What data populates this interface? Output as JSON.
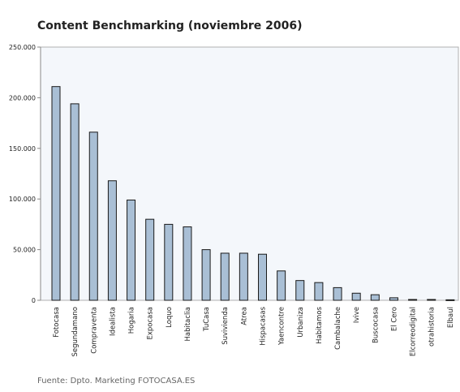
{
  "chart_data": {
    "type": "bar",
    "title": "Content Benchmarking (noviembre 2006)",
    "source": "Fuente: Dpto. Marketing FOTOCASA.ES",
    "xlabel": "",
    "ylabel": "",
    "ylim": [
      0,
      250000
    ],
    "yticks": [
      0,
      50000,
      100000,
      150000,
      200000,
      250000
    ],
    "ytick_labels": [
      "0",
      "50.000",
      "100.000",
      "150.000",
      "200.000",
      "250.000"
    ],
    "grid": false,
    "categories": [
      "Fotocasa",
      "Segundamano",
      "Compraventa",
      "Idealista",
      "Hogaria",
      "Expocasa",
      "Loquo",
      "Habitaclia",
      "TuCasa",
      "Suvivienda",
      "Atrea",
      "Hispacasas",
      "Yaencontre",
      "Urbaniza",
      "Habitamos",
      "Cambalache",
      "Ivive",
      "Buscocasa",
      "El Cero",
      "Elcorreodigital",
      "otrahistoria",
      "Elbaul"
    ],
    "values": [
      211000,
      194000,
      166000,
      118000,
      99000,
      80000,
      75000,
      72500,
      50000,
      46500,
      46500,
      45500,
      29000,
      19500,
      17500,
      12500,
      7000,
      5500,
      2500,
      800,
      800,
      500
    ],
    "colors": {
      "bar_fill": "#a9bfd5",
      "bar_stroke": "#1a1a1a",
      "plot_bg": "#f4f7fb",
      "plot_border": "#b0b0b0"
    }
  }
}
